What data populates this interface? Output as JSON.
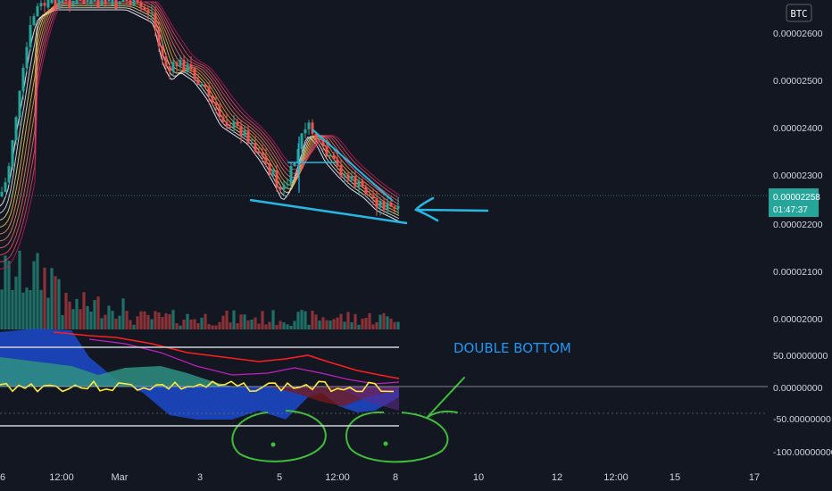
{
  "chart_data": {
    "type": "candlestick",
    "symbol_badge": "BTC",
    "x_ticks": [
      "6",
      "12:00",
      "Mar",
      "3",
      "5",
      "12:00",
      "8",
      "10",
      "12",
      "12:00",
      "15",
      "17"
    ],
    "price_axis": {
      "ticks": [
        "0.00002600",
        "0.00002500",
        "0.00002400",
        "0.00002300",
        "0.00002200",
        "0.00002100",
        "0.00002000"
      ],
      "ylim": [
        1.99e-05,
        2.65e-05
      ]
    },
    "current_price": {
      "value": "0.00002258",
      "countdown": "01:47:37"
    },
    "oscillator_axis": {
      "ticks": [
        "50.00000000",
        "0.00000000",
        "-50.00000000",
        "-100.00000000"
      ],
      "ylim": [
        -108,
        110
      ]
    },
    "annotation": "DOUBLE BOTTOM",
    "colors": {
      "background": "#131722",
      "candle_up": "#26a69a",
      "candle_down": "#ef5350",
      "volume_up": "#1f6f69",
      "volume_down": "#8a3236",
      "annotation_blue": "#27b7e4",
      "annotation_green": "#3fbe3a",
      "osc_red": "#ff1e1e",
      "osc_magenta": "#c020c0",
      "osc_yellow": "#ffeb3b",
      "osc_blue": "#1d4ed8",
      "osc_teal": "#2f8f80",
      "osc_green": "#1f5f1f",
      "price_badge": "#26a69a"
    }
  }
}
